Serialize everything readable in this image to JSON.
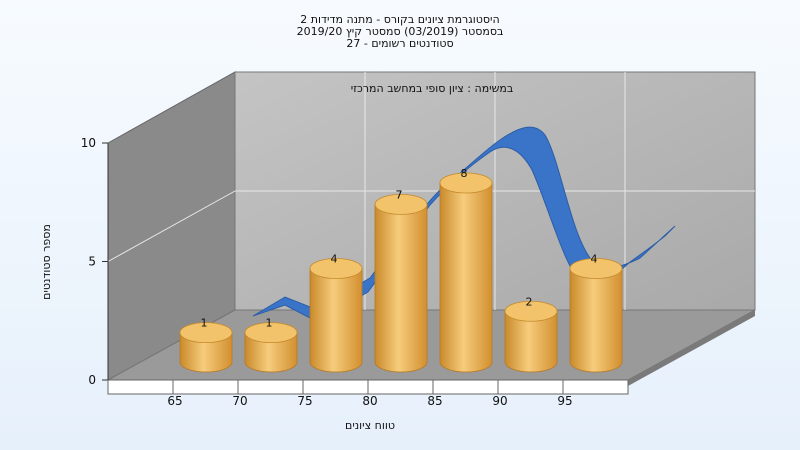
{
  "chart_data": {
    "type": "bar",
    "title_lines": [
      "היסטוגרמת ציונים בקורס - מתנה מדידות 2",
      "בסמסטר  (03/2019)  סמסטר קיץ 2019/20",
      "סטודנטים רשומים - 27"
    ],
    "subtitle": "במשימה : ציון סופי במחשב המרכזי",
    "xlabel": "טווח ציונים",
    "ylabel": "מספר סטודנטים",
    "categories": [
      "65",
      "70",
      "75",
      "80",
      "85",
      "90",
      "95"
    ],
    "values": [
      1,
      1,
      4,
      7,
      8,
      2,
      4
    ],
    "y_ticks": [
      "0",
      "5",
      "10"
    ],
    "ylim": [
      0,
      10
    ],
    "curve": {
      "description_color": "#3a74c8"
    },
    "colors": {
      "bar": "#e6a84a",
      "bar_top": "#f2c36a",
      "curve": "#3a74c8",
      "back_wall": "#b4b4b4",
      "side_wall": "#8c8c8c",
      "floor": "#9a9a9a"
    }
  }
}
